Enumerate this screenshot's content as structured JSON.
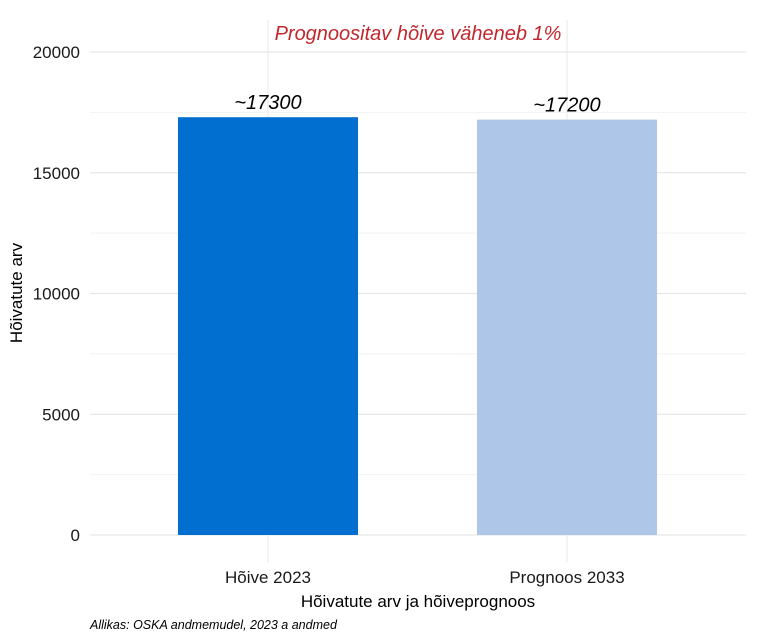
{
  "chart_data": {
    "type": "bar",
    "annotation": "Prognoositav hõive väheneb 1%",
    "categories": [
      "Hõive 2023",
      "Prognoos 2033"
    ],
    "values": [
      17300,
      17200
    ],
    "data_labels": [
      "~17300",
      "~17200"
    ],
    "bar_colors": [
      "#006fcf",
      "#aec7e8"
    ],
    "annotation_color": "#c0282d",
    "xlabel": "Hõivatute arv ja hõiveprognoos",
    "ylabel": "Hõivatute arv",
    "ylim": [
      0,
      20000
    ],
    "yticks": [
      0,
      5000,
      10000,
      15000,
      20000
    ],
    "grid": true,
    "caption": "Allikas: OSKA andmemudel, 2023 a andmed"
  }
}
